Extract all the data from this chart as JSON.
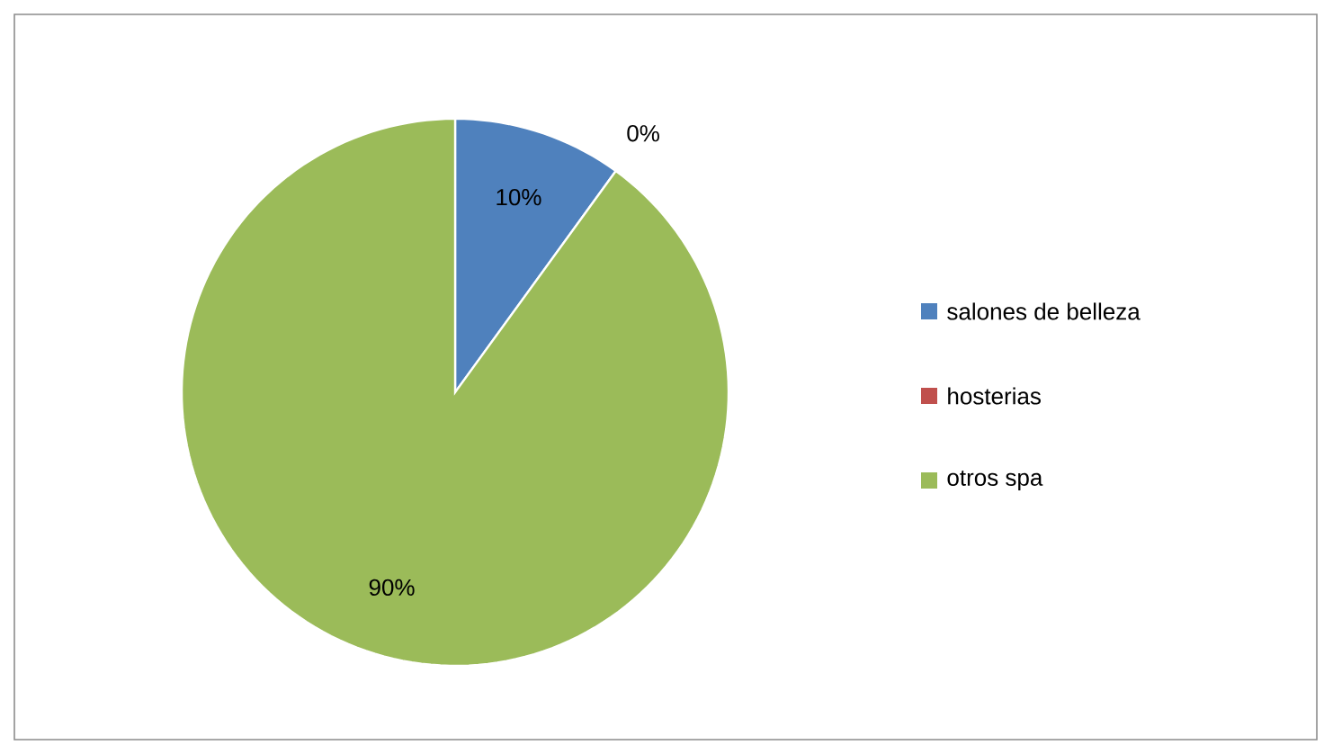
{
  "chart_data": {
    "type": "pie",
    "categories": [
      "salones de belleza",
      "hosterias",
      "otros spa"
    ],
    "values": [
      10,
      0,
      90
    ],
    "colors": [
      "#4f81bd",
      "#c0504d",
      "#9bbb59"
    ],
    "value_labels": [
      "10%",
      "0%",
      "90%"
    ],
    "legend": "right"
  }
}
